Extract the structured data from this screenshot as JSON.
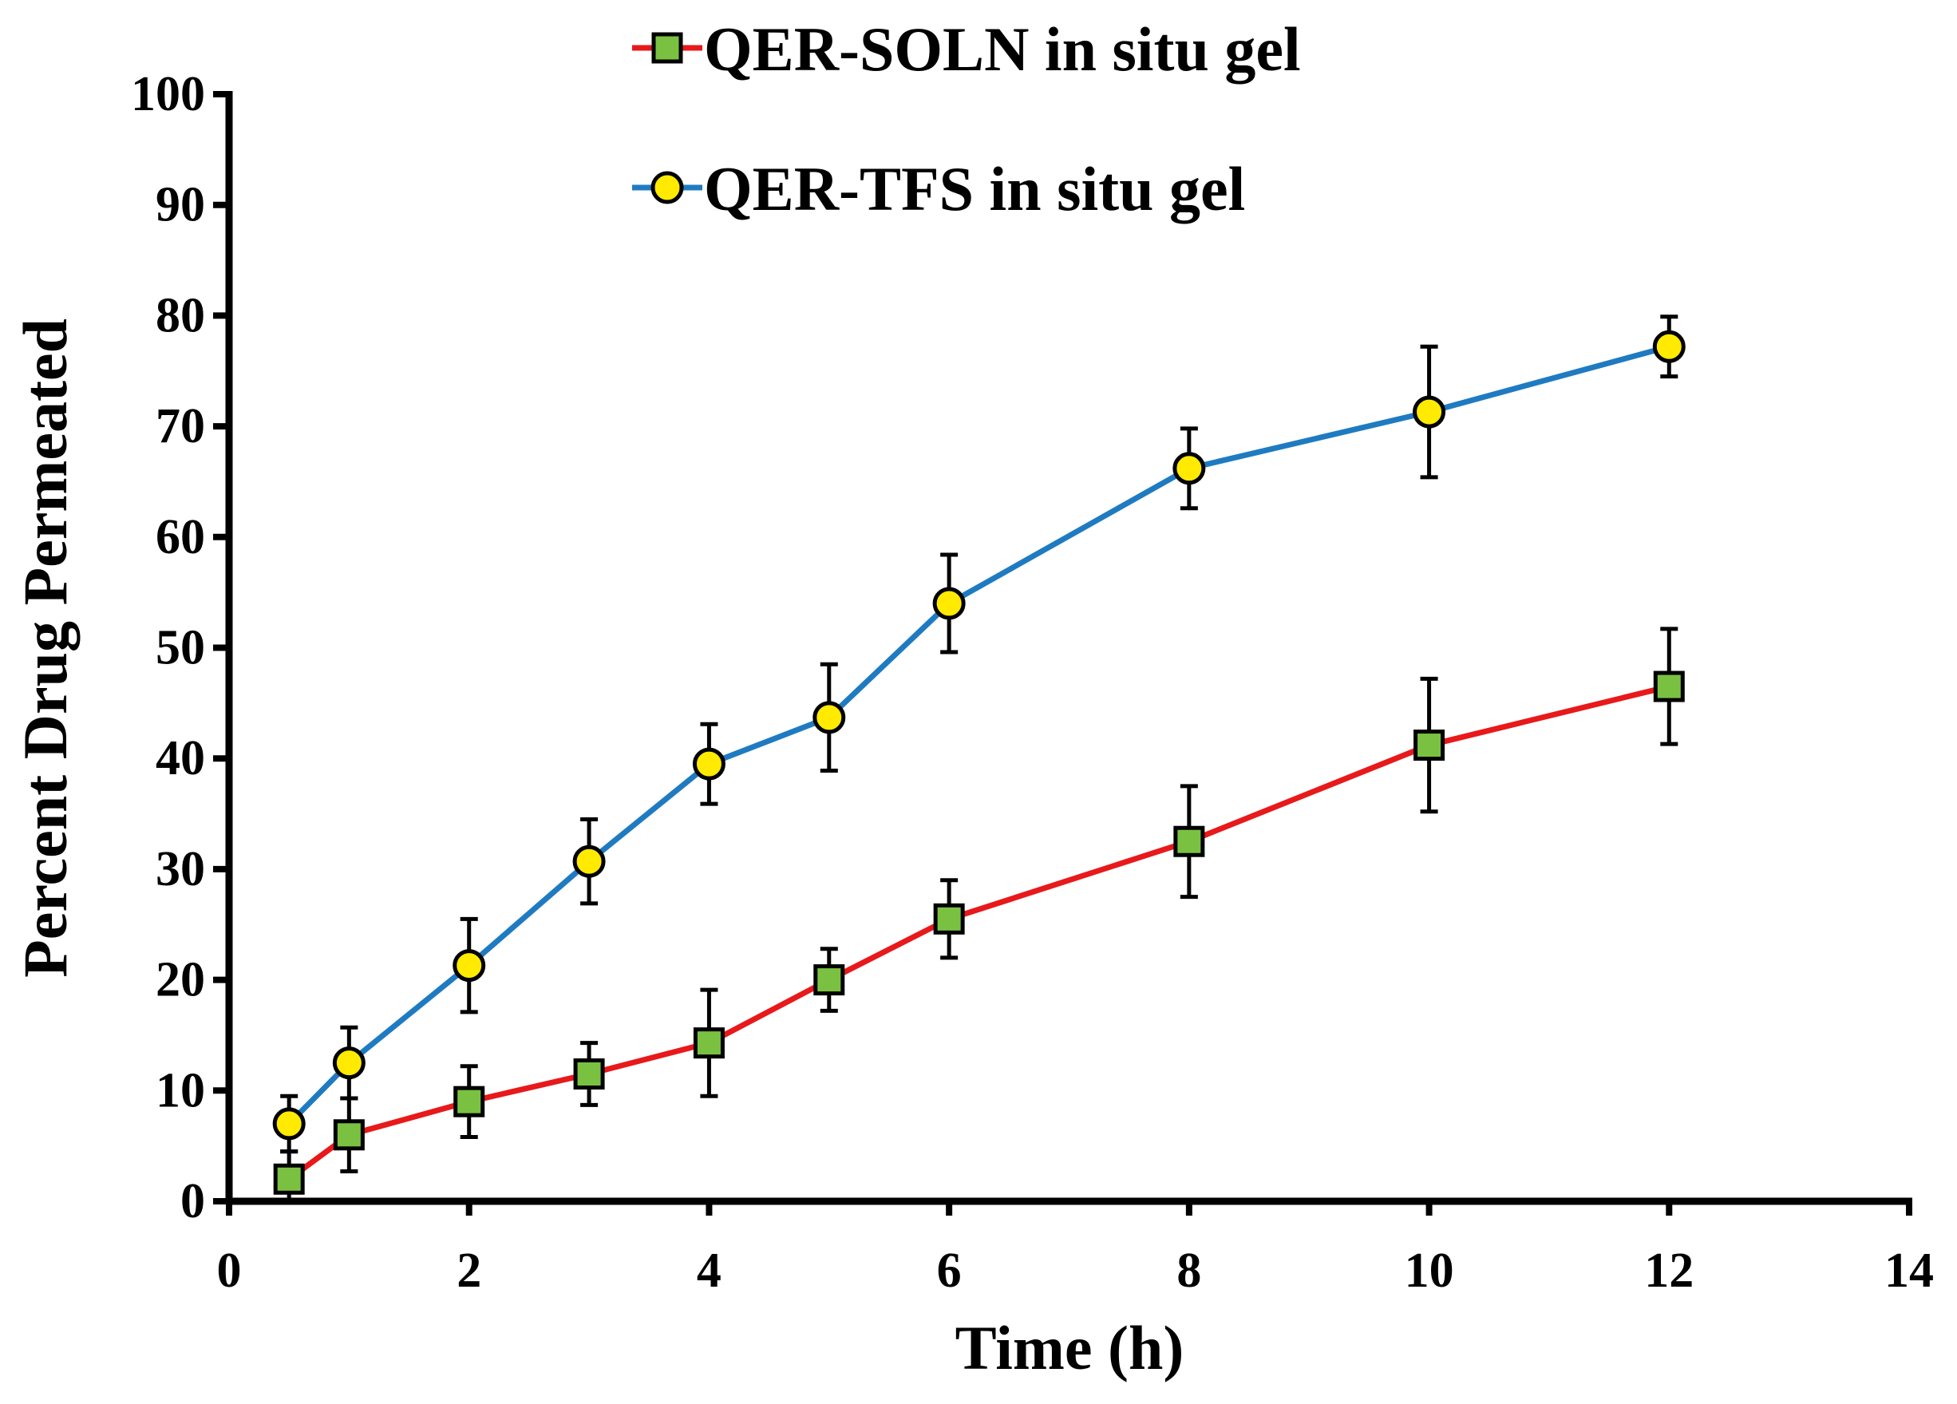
{
  "chart_data": {
    "type": "line",
    "xlabel": "Time (h)",
    "ylabel": "Percent Drug Permeated",
    "xlim": [
      0,
      14
    ],
    "ylim": [
      0,
      100
    ],
    "x_ticks": [
      "0",
      "2",
      "4",
      "6",
      "8",
      "10",
      "12",
      "14"
    ],
    "y_ticks": [
      "0",
      "10",
      "20",
      "30",
      "40",
      "50",
      "60",
      "70",
      "80",
      "90",
      "100"
    ],
    "grid": false,
    "legend_position": "top-center",
    "x": [
      0.5,
      1,
      2,
      3,
      4,
      5,
      6,
      8,
      10,
      12
    ],
    "series": [
      {
        "name": "QER-SOLN in situ gel",
        "line_color": "#e8191b",
        "marker": "square",
        "marker_color": "#7ac142",
        "values": [
          2.0,
          6.0,
          9.0,
          11.5,
          14.3,
          20.0,
          25.5,
          32.5,
          41.2,
          46.5
        ],
        "errors": [
          2.5,
          3.3,
          3.2,
          2.8,
          4.8,
          2.8,
          3.5,
          5.0,
          6.0,
          5.2
        ]
      },
      {
        "name": "QER-TFS in situ gel",
        "line_color": "#1f7bc1",
        "marker": "circle",
        "marker_color": "#ffea00",
        "values": [
          7.0,
          12.5,
          21.3,
          30.7,
          39.5,
          43.7,
          54.0,
          66.2,
          71.3,
          77.2
        ],
        "errors": [
          2.5,
          3.2,
          4.2,
          3.8,
          3.6,
          4.8,
          4.4,
          3.6,
          5.9,
          2.7
        ]
      }
    ]
  }
}
